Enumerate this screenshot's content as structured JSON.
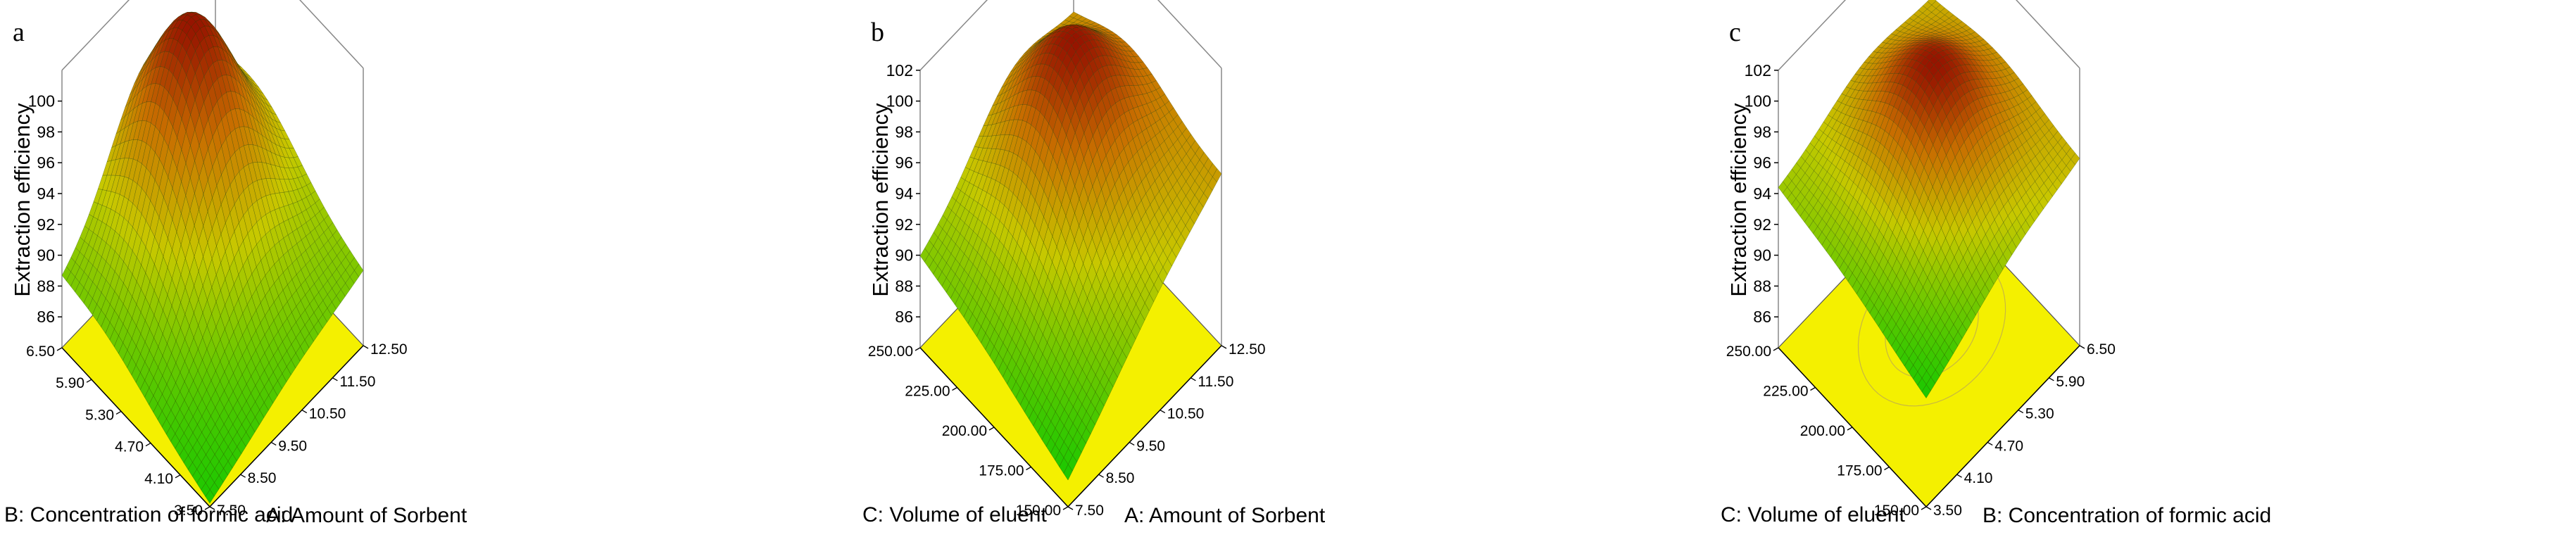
{
  "chart_data": [
    {
      "type": "surface",
      "panel_letter": "a",
      "zlabel": "Extraction efficiency",
      "zticks": [
        "86",
        "88",
        "90",
        "92",
        "94",
        "96",
        "98",
        "100"
      ],
      "zlim": [
        84,
        102
      ],
      "x_axis": {
        "label": "A: Amount of Sorbent",
        "ticks": [
          "7.50",
          "8.50",
          "9.50",
          "10.50",
          "11.50",
          "12.50"
        ],
        "range": [
          7.5,
          12.5
        ]
      },
      "y_axis": {
        "label": "B: Concentration of formic acid",
        "ticks": [
          "3.50",
          "4.10",
          "4.70",
          "5.30",
          "5.90",
          "6.50"
        ],
        "range": [
          3.5,
          6.5
        ]
      },
      "surface": {
        "corner_values": {
          "x_min_y_min": 84.2,
          "x_max_y_min": 88.8,
          "x_min_y_max": 88.2,
          "x_max_y_max": 91.8
        },
        "peak": {
          "x": 10.3,
          "y": 5.6,
          "z": 102.0
        }
      }
    },
    {
      "type": "surface",
      "panel_letter": "b",
      "zlabel": "Extraction efficiency",
      "zticks": [
        "86",
        "88",
        "90",
        "92",
        "94",
        "96",
        "98",
        "100",
        "102"
      ],
      "zlim": [
        84,
        102
      ],
      "x_axis": {
        "label": "A: Amount of Sorbent",
        "ticks": [
          "7.50",
          "8.50",
          "9.50",
          "10.50",
          "11.50",
          "12.50"
        ],
        "range": [
          7.5,
          12.5
        ]
      },
      "y_axis": {
        "label": "C: Volume of eluent",
        "ticks": [
          "150.00",
          "175.00",
          "200.00",
          "225.00",
          "250.00"
        ],
        "range": [
          150,
          250
        ]
      },
      "surface": {
        "corner_values": {
          "x_min_y_min": 85.7,
          "x_max_y_min": 95.0,
          "x_min_y_max": 89.8,
          "x_max_y_max": 94.5
        },
        "peak": {
          "x": 10.5,
          "y": 212.0,
          "z": 101.0
        }
      }
    },
    {
      "type": "surface",
      "panel_letter": "c",
      "zlabel": "Extraction efficiency",
      "zticks": [
        "86",
        "88",
        "90",
        "92",
        "94",
        "96",
        "98",
        "100",
        "102"
      ],
      "zlim": [
        84,
        102
      ],
      "x_axis": {
        "label": "B: Concentration of formic acid",
        "ticks": [
          "3.50",
          "4.10",
          "4.70",
          "5.30",
          "5.90",
          "6.50"
        ],
        "range": [
          3.5,
          6.5
        ]
      },
      "y_axis": {
        "label": "C: Volume of eluent",
        "ticks": [
          "150.00",
          "175.00",
          "200.00",
          "225.00",
          "250.00"
        ],
        "range": [
          150,
          250
        ]
      },
      "surface": {
        "corner_values": {
          "x_min_y_min": 91.0,
          "x_max_y_min": 96.0,
          "x_min_y_max": 94.3,
          "x_max_y_max": 96.0
        },
        "peak": {
          "x": 5.2,
          "y": 205.0,
          "z": 100.7
        }
      }
    }
  ]
}
